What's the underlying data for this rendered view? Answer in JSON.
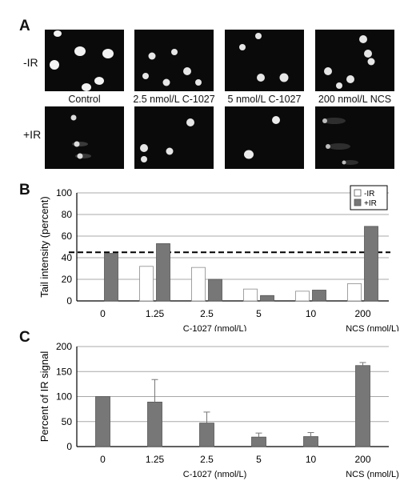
{
  "panelA": {
    "letter": "A",
    "row_labels": [
      "-IR",
      "+IR"
    ],
    "captions": [
      "Control",
      "2.5 nmol/L C-1027",
      "5 nmol/L C-1027",
      "200 nmol/L NCS"
    ]
  },
  "panelB": {
    "letter": "B"
  },
  "panelC": {
    "letter": "C"
  },
  "chart_data": [
    {
      "type": "bar",
      "categories": [
        "0",
        "1.25",
        "2.5",
        "5",
        "10",
        "200"
      ],
      "series": [
        {
          "name": "-IR",
          "values": [
            0,
            32,
            31,
            11,
            9,
            16
          ],
          "color": "#ffffff"
        },
        {
          "name": "+IR",
          "values": [
            44,
            53,
            20,
            5,
            10,
            69
          ],
          "color": "#777777"
        }
      ],
      "title": "",
      "xlabel": "",
      "ylabel": "Tail intensity (percent)",
      "ylim": [
        0,
        100
      ],
      "yticks": [
        0,
        20,
        40,
        60,
        80,
        100
      ],
      "reference_line": 45,
      "group_labels": [
        "C-1027 (nmol/L)",
        "NCS (nmol/L)"
      ],
      "legend_position": "top-right",
      "grid": true
    },
    {
      "type": "bar",
      "categories": [
        "0",
        "1.25",
        "2.5",
        "5",
        "10",
        "200"
      ],
      "series": [
        {
          "name": "",
          "values": [
            100,
            89,
            47,
            19,
            20,
            162
          ],
          "errors": [
            0,
            45,
            22,
            8,
            8,
            6
          ],
          "color": "#777777"
        }
      ],
      "title": "",
      "xlabel": "",
      "ylabel": "Percent of IR signal",
      "ylim": [
        0,
        200
      ],
      "yticks": [
        0,
        50,
        100,
        150,
        200
      ],
      "group_labels": [
        "C-1027 (nmol/L)",
        "NCS (nmol/L)"
      ],
      "grid": true
    }
  ]
}
